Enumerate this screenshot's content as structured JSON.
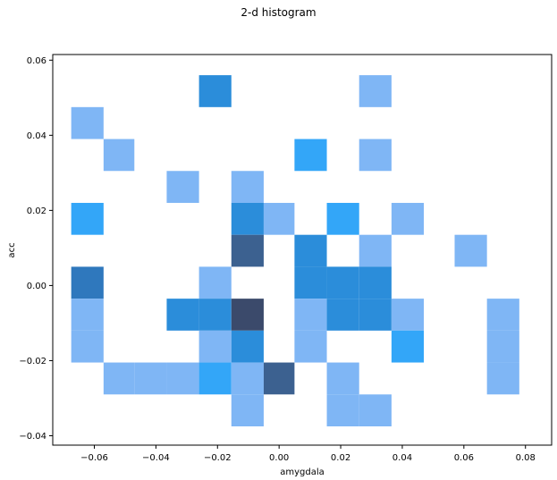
{
  "chart_data": {
    "type": "heatmap",
    "title": "2-d histogram",
    "xlabel": "amygdala",
    "ylabel": "acc",
    "xlim": [
      -0.0735,
      0.0885
    ],
    "ylim": [
      -0.0425,
      0.0615
    ],
    "x_ticks": [
      -0.06,
      -0.04,
      -0.02,
      0.0,
      0.02,
      0.04,
      0.06,
      0.08
    ],
    "x_tick_labels": [
      "−0.06",
      "−0.04",
      "−0.02",
      "0.00",
      "0.02",
      "0.04",
      "0.06",
      "0.08"
    ],
    "y_ticks": [
      -0.04,
      -0.02,
      0.0,
      0.02,
      0.04,
      0.06
    ],
    "y_tick_labels": [
      "−0.04",
      "−0.02",
      "0.00",
      "0.02",
      "0.04",
      "0.06"
    ],
    "grid": false,
    "x_bin_edges": [
      -0.0675,
      -0.057,
      -0.047,
      -0.0365,
      -0.026,
      -0.0155,
      -0.005,
      0.005,
      0.0155,
      0.026,
      0.0365,
      0.047,
      0.057,
      0.0675,
      0.078
    ],
    "y_bin_edges": [
      -0.0375,
      -0.029,
      -0.0205,
      -0.012,
      -0.0035,
      0.005,
      0.0135,
      0.022,
      0.0305,
      0.039,
      0.0475,
      0.056
    ],
    "bin_colors": {
      "1": "#7fb6f5",
      "2": "#33a6f8",
      "3": "#2b8dda",
      "4": "#2f78bd",
      "5": "#3c6190",
      "6": "#3b4a6b"
    },
    "cells": [
      {
        "x": -0.0205,
        "y": 0.05175,
        "count": 3
      },
      {
        "x": 0.03125,
        "y": 0.05175,
        "count": 1
      },
      {
        "x": -0.06225,
        "y": 0.04325,
        "count": 1
      },
      {
        "x": -0.052,
        "y": 0.03475,
        "count": 1
      },
      {
        "x": 0.0103,
        "y": 0.03475,
        "count": 2
      },
      {
        "x": 0.03125,
        "y": 0.03475,
        "count": 1
      },
      {
        "x": -0.03125,
        "y": 0.02625,
        "count": 1
      },
      {
        "x": -0.0103,
        "y": 0.02625,
        "count": 1
      },
      {
        "x": -0.06225,
        "y": 0.01775,
        "count": 2
      },
      {
        "x": -0.0103,
        "y": 0.01775,
        "count": 3
      },
      {
        "x": 0.0,
        "y": 0.01775,
        "count": 1
      },
      {
        "x": 0.02075,
        "y": 0.01775,
        "count": 2
      },
      {
        "x": 0.042,
        "y": 0.01775,
        "count": 1
      },
      {
        "x": -0.0103,
        "y": 0.00925,
        "count": 5
      },
      {
        "x": 0.0103,
        "y": 0.00925,
        "count": 3
      },
      {
        "x": 0.03125,
        "y": 0.00925,
        "count": 1
      },
      {
        "x": 0.0622,
        "y": 0.00925,
        "count": 1
      },
      {
        "x": -0.06225,
        "y": 0.00075,
        "count": 4
      },
      {
        "x": -0.0205,
        "y": 0.00075,
        "count": 1
      },
      {
        "x": 0.0103,
        "y": 0.00075,
        "count": 3
      },
      {
        "x": 0.02075,
        "y": 0.00075,
        "count": 3
      },
      {
        "x": 0.03125,
        "y": 0.00075,
        "count": 3
      },
      {
        "x": -0.06225,
        "y": -0.00775,
        "count": 1
      },
      {
        "x": -0.03125,
        "y": -0.00775,
        "count": 3
      },
      {
        "x": -0.0205,
        "y": -0.00775,
        "count": 3
      },
      {
        "x": -0.0103,
        "y": -0.00775,
        "count": 6
      },
      {
        "x": 0.0103,
        "y": -0.00775,
        "count": 1
      },
      {
        "x": 0.02075,
        "y": -0.00775,
        "count": 3
      },
      {
        "x": 0.03125,
        "y": -0.00775,
        "count": 3
      },
      {
        "x": 0.042,
        "y": -0.00775,
        "count": 1
      },
      {
        "x": 0.07275,
        "y": -0.00775,
        "count": 1
      },
      {
        "x": -0.06225,
        "y": -0.01625,
        "count": 1
      },
      {
        "x": -0.0205,
        "y": -0.01625,
        "count": 1
      },
      {
        "x": -0.0103,
        "y": -0.01625,
        "count": 3
      },
      {
        "x": 0.0103,
        "y": -0.01625,
        "count": 1
      },
      {
        "x": 0.042,
        "y": -0.01625,
        "count": 2
      },
      {
        "x": 0.07275,
        "y": -0.01625,
        "count": 1
      },
      {
        "x": -0.052,
        "y": -0.02475,
        "count": 1
      },
      {
        "x": -0.0415,
        "y": -0.02475,
        "count": 1
      },
      {
        "x": -0.03125,
        "y": -0.02475,
        "count": 1
      },
      {
        "x": -0.0205,
        "y": -0.02475,
        "count": 2
      },
      {
        "x": -0.0103,
        "y": -0.02475,
        "count": 1
      },
      {
        "x": 0.0,
        "y": -0.02475,
        "count": 5
      },
      {
        "x": 0.02075,
        "y": -0.02475,
        "count": 1
      },
      {
        "x": 0.07275,
        "y": -0.02475,
        "count": 1
      },
      {
        "x": -0.0103,
        "y": -0.03325,
        "count": 1
      },
      {
        "x": 0.02075,
        "y": -0.03325,
        "count": 1
      },
      {
        "x": 0.03125,
        "y": -0.03325,
        "count": 1
      }
    ]
  }
}
